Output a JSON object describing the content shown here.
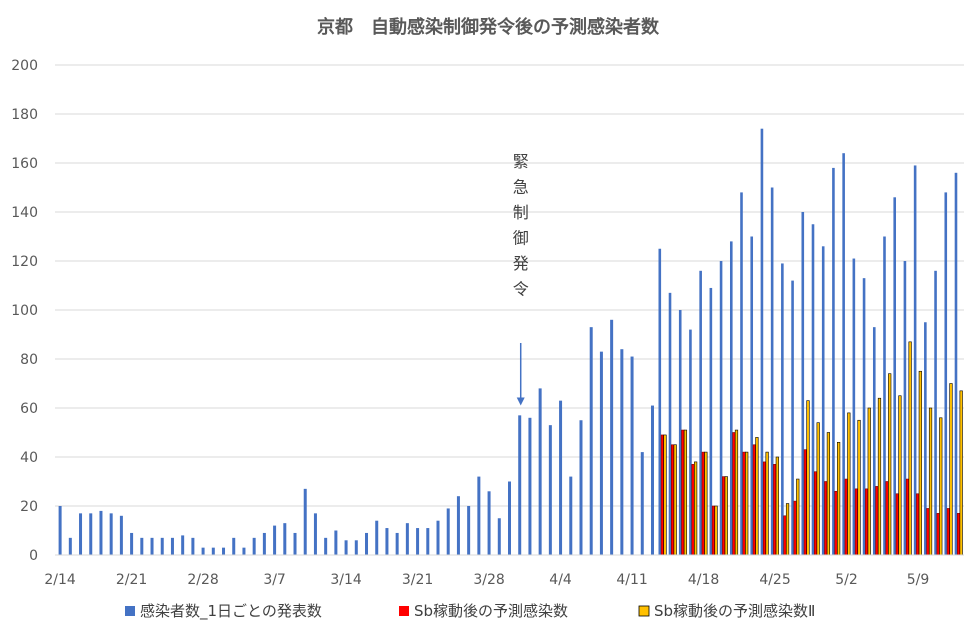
{
  "chart_data": {
    "type": "bar",
    "title": "京都　自動感染制御発令後の予測感染者数",
    "xlabel": "",
    "ylabel": "",
    "ylim": [
      0,
      200
    ],
    "yticks": [
      0,
      20,
      40,
      60,
      80,
      100,
      120,
      140,
      160,
      180,
      200
    ],
    "grid": true,
    "legend_position": "bottom",
    "x_tick_labels": [
      {
        "index": 0,
        "label": "2/14"
      },
      {
        "index": 7,
        "label": "2/21"
      },
      {
        "index": 14,
        "label": "2/28"
      },
      {
        "index": 21,
        "label": "3/7"
      },
      {
        "index": 28,
        "label": "3/14"
      },
      {
        "index": 35,
        "label": "3/21"
      },
      {
        "index": 42,
        "label": "3/28"
      },
      {
        "index": 49,
        "label": "4/4"
      },
      {
        "index": 56,
        "label": "4/11"
      },
      {
        "index": 63,
        "label": "4/18"
      },
      {
        "index": 70,
        "label": "4/25"
      },
      {
        "index": 77,
        "label": "5/2"
      },
      {
        "index": 84,
        "label": "5/9"
      }
    ],
    "annotation": {
      "text": "緊急制御発令",
      "index": 45,
      "arrow_tip_value": 61
    },
    "series": [
      {
        "name": "感染者数_1日ごとの発表数",
        "color": "#4472C4",
        "values": [
          20,
          7,
          17,
          17,
          18,
          17,
          16,
          9,
          7,
          7,
          7,
          7,
          8,
          7,
          3,
          3,
          3,
          7,
          3,
          7,
          9,
          12,
          13,
          9,
          27,
          17,
          7,
          10,
          6,
          6,
          9,
          14,
          11,
          9,
          13,
          11,
          11,
          14,
          19,
          24,
          20,
          32,
          26,
          15,
          30,
          57,
          56,
          68,
          53,
          63,
          32,
          55,
          93,
          83,
          96,
          84,
          81,
          42,
          61,
          125,
          107,
          100,
          92,
          116,
          109,
          120,
          128,
          148,
          130,
          174,
          150,
          119,
          112,
          140,
          135,
          126,
          158,
          164,
          121,
          113,
          93,
          130,
          146,
          120,
          159,
          95,
          116,
          148,
          156
        ]
      },
      {
        "name": "Sb稼動後の予測感染数",
        "color": "#FF0000",
        "values": [
          null,
          null,
          null,
          null,
          null,
          null,
          null,
          null,
          null,
          null,
          null,
          null,
          null,
          null,
          null,
          null,
          null,
          null,
          null,
          null,
          null,
          null,
          null,
          null,
          null,
          null,
          null,
          null,
          null,
          null,
          null,
          null,
          null,
          null,
          null,
          null,
          null,
          null,
          null,
          null,
          null,
          null,
          null,
          null,
          null,
          null,
          null,
          null,
          null,
          null,
          null,
          null,
          null,
          null,
          null,
          null,
          null,
          null,
          null,
          49,
          45,
          51,
          37,
          42,
          20,
          32,
          50,
          42,
          45,
          38,
          37,
          16,
          22,
          43,
          34,
          30,
          26,
          31,
          27,
          27,
          28,
          30,
          25,
          31,
          25,
          19,
          17,
          19,
          17
        ]
      },
      {
        "name": "Sb稼動後の予測感染数Ⅱ",
        "color": "#FFC000",
        "values": [
          null,
          null,
          null,
          null,
          null,
          null,
          null,
          null,
          null,
          null,
          null,
          null,
          null,
          null,
          null,
          null,
          null,
          null,
          null,
          null,
          null,
          null,
          null,
          null,
          null,
          null,
          null,
          null,
          null,
          null,
          null,
          null,
          null,
          null,
          null,
          null,
          null,
          null,
          null,
          null,
          null,
          null,
          null,
          null,
          null,
          null,
          null,
          null,
          null,
          null,
          null,
          null,
          null,
          null,
          null,
          null,
          null,
          null,
          null,
          49,
          45,
          51,
          38,
          42,
          20,
          32,
          51,
          42,
          48,
          42,
          40,
          21,
          31,
          63,
          54,
          50,
          46,
          58,
          55,
          60,
          64,
          74,
          65,
          87,
          75,
          60,
          56,
          70,
          67
        ]
      }
    ]
  }
}
